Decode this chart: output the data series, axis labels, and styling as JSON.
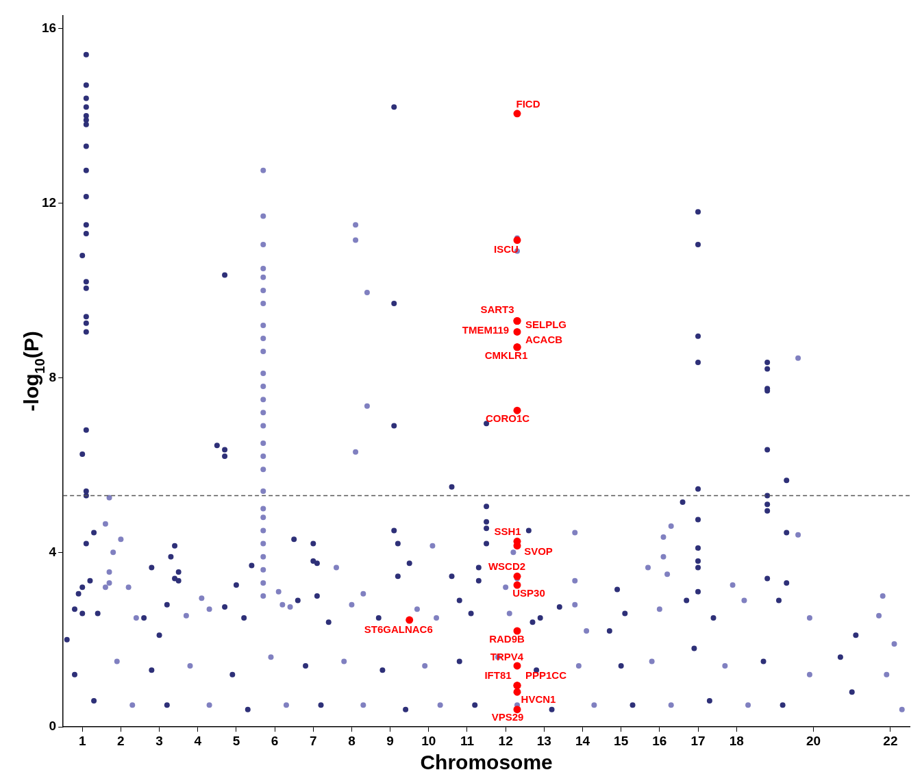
{
  "chart_data": {
    "type": "scatter",
    "xlabel": "Chromosome",
    "ylabel": "-log$_{10}$(P)",
    "xlim": [
      0.5,
      22.5
    ],
    "ylim": [
      0,
      16.3
    ],
    "xticks": [
      1,
      2,
      3,
      4,
      5,
      6,
      7,
      8,
      9,
      10,
      11,
      12,
      13,
      14,
      15,
      16,
      17,
      18,
      20,
      22
    ],
    "yticks": [
      0,
      4,
      8,
      12,
      16
    ],
    "grid": false,
    "legend": false,
    "marker": "circle",
    "ref_lines": [
      {
        "axis": "y",
        "value": 5.3,
        "color": "#555555",
        "line_style": "dashed"
      }
    ],
    "series": [
      {
        "color": "#2e3078",
        "x": [
          1.0,
          1.0,
          1.1,
          1.1,
          1.1,
          1.1,
          1.1,
          1.1,
          1.1,
          1.1,
          1.1,
          1.1,
          1.1,
          1.1,
          1.1,
          1.1,
          1.1,
          1.1,
          1.1,
          1.1,
          1.1,
          1.1,
          1.1,
          1.3,
          1.2,
          1.0,
          0.9,
          0.6,
          0.8,
          1.0,
          1.4,
          0.8,
          1.3,
          2.8,
          3.2,
          3.3,
          3.4,
          3.4,
          3.5,
          3.5,
          2.6,
          3.0,
          2.8,
          3.2,
          4.5,
          4.7,
          4.7,
          4.7,
          5.0,
          5.4,
          4.7,
          5.2,
          4.9,
          5.3,
          6.5,
          7.0,
          7.0,
          7.1,
          7.1,
          6.6,
          7.4,
          6.8,
          7.2,
          9.1,
          9.1,
          9.1,
          9.1,
          9.2,
          9.5,
          9.2,
          8.7,
          8.8,
          9.4,
          10.6,
          11.5,
          11.5,
          11.5,
          11.5,
          11.5,
          11.3,
          11.3,
          10.6,
          10.8,
          11.1,
          10.8,
          11.2,
          12.6,
          12.9,
          13.4,
          12.7,
          12.8,
          13.2,
          14.9,
          15.1,
          14.7,
          15.0,
          15.3,
          17.0,
          17.0,
          17.0,
          17.0,
          17.0,
          16.6,
          17.0,
          17.0,
          17.0,
          17.0,
          17.0,
          16.7,
          17.4,
          16.9,
          17.3,
          18.8,
          18.8,
          18.8,
          18.8,
          18.8,
          18.8,
          18.8,
          18.8,
          19.3,
          19.3,
          19.3,
          18.8,
          19.1,
          18.7,
          19.2,
          21.1,
          20.7,
          21.0
        ],
        "values": [
          6.25,
          10.8,
          15.4,
          14.7,
          14.4,
          14.2,
          14.0,
          13.9,
          13.8,
          13.3,
          12.75,
          12.15,
          11.5,
          11.3,
          10.2,
          10.05,
          9.4,
          9.25,
          9.05,
          6.8,
          5.4,
          5.3,
          4.2,
          4.45,
          3.35,
          3.2,
          3.05,
          2.0,
          2.7,
          2.6,
          2.6,
          1.2,
          0.6,
          3.65,
          2.8,
          3.9,
          3.4,
          4.15,
          3.55,
          3.35,
          2.5,
          2.1,
          1.3,
          0.5,
          6.45,
          6.35,
          6.2,
          10.35,
          3.25,
          3.7,
          2.75,
          2.5,
          1.2,
          0.4,
          4.3,
          4.2,
          3.8,
          3.75,
          3.0,
          2.9,
          2.4,
          1.4,
          0.5,
          14.2,
          9.7,
          6.9,
          4.5,
          4.2,
          3.75,
          3.45,
          2.5,
          1.3,
          0.4,
          5.5,
          6.95,
          5.05,
          4.7,
          4.55,
          4.2,
          3.65,
          3.35,
          3.45,
          2.9,
          2.6,
          1.5,
          0.5,
          4.5,
          2.5,
          2.75,
          2.4,
          1.3,
          0.4,
          3.15,
          2.6,
          2.2,
          1.4,
          0.5,
          11.8,
          11.05,
          8.95,
          8.35,
          5.45,
          5.15,
          4.75,
          4.1,
          3.8,
          3.65,
          3.1,
          2.9,
          2.5,
          1.8,
          0.6,
          8.35,
          8.2,
          7.75,
          7.7,
          6.35,
          5.3,
          5.1,
          4.95,
          5.65,
          4.45,
          3.3,
          3.4,
          2.9,
          1.5,
          0.5,
          2.1,
          1.6,
          0.8
        ]
      },
      {
        "color": "#8080c0",
        "x": [
          1.7,
          1.8,
          2.0,
          1.6,
          1.7,
          1.6,
          1.7,
          2.2,
          2.4,
          1.9,
          2.3,
          4.1,
          3.7,
          4.3,
          3.8,
          4.3,
          5.7,
          5.7,
          5.7,
          5.7,
          5.7,
          5.7,
          5.7,
          5.7,
          5.7,
          5.7,
          5.7,
          5.7,
          5.7,
          5.7,
          5.7,
          5.7,
          5.7,
          5.7,
          5.7,
          5.7,
          5.7,
          5.7,
          5.7,
          5.7,
          5.7,
          5.7,
          5.7,
          6.1,
          6.2,
          6.4,
          5.9,
          6.3,
          8.1,
          8.1,
          8.4,
          8.4,
          8.1,
          7.6,
          8.3,
          8.0,
          7.8,
          8.3,
          10.1,
          9.7,
          10.2,
          9.9,
          10.3,
          12.3,
          12.3,
          12.2,
          12.3,
          12.0,
          12.1,
          11.8,
          12.3,
          13.8,
          13.8,
          13.8,
          14.1,
          13.9,
          14.3,
          16.3,
          16.1,
          16.1,
          15.7,
          16.2,
          16.0,
          15.8,
          16.3,
          17.9,
          18.2,
          17.7,
          18.3,
          19.6,
          19.6,
          19.9,
          19.9,
          21.8,
          21.7,
          22.1,
          21.9,
          22.3
        ],
        "values": [
          5.25,
          4.0,
          4.3,
          4.65,
          3.55,
          3.2,
          3.3,
          3.2,
          2.5,
          1.5,
          0.5,
          2.95,
          2.55,
          2.7,
          1.4,
          0.5,
          12.75,
          11.7,
          11.05,
          10.5,
          10.3,
          10.0,
          9.7,
          9.2,
          8.9,
          8.6,
          8.1,
          7.8,
          7.5,
          7.2,
          6.9,
          6.5,
          6.2,
          5.9,
          5.4,
          5.0,
          4.8,
          4.5,
          4.2,
          3.9,
          3.6,
          3.3,
          3.0,
          3.1,
          2.8,
          2.75,
          1.6,
          0.5,
          11.5,
          11.15,
          9.95,
          7.35,
          6.3,
          3.65,
          3.05,
          2.8,
          1.5,
          0.5,
          4.15,
          2.7,
          2.5,
          1.4,
          0.5,
          11.2,
          10.9,
          4.0,
          3.4,
          3.2,
          2.6,
          1.6,
          0.5,
          4.45,
          3.35,
          2.8,
          2.2,
          1.4,
          0.5,
          4.6,
          4.35,
          3.9,
          3.65,
          3.5,
          2.7,
          1.5,
          0.5,
          3.25,
          2.9,
          1.4,
          0.5,
          8.45,
          4.4,
          2.5,
          1.2,
          3.0,
          2.55,
          1.9,
          1.2,
          0.4
        ]
      },
      {
        "color": "#ff0000",
        "x": [
          12.3,
          12.3,
          12.3,
          12.3,
          12.3,
          12.3,
          12.3,
          12.3,
          12.3,
          12.3,
          12.3,
          12.3,
          9.5,
          12.3,
          12.3,
          12.3,
          12.3,
          12.3,
          12.3
        ],
        "values": [
          14.05,
          11.15,
          9.3,
          9.3,
          9.05,
          8.7,
          8.7,
          7.25,
          4.25,
          4.15,
          3.45,
          3.25,
          2.45,
          2.2,
          1.4,
          0.95,
          0.95,
          0.8,
          0.4
        ]
      }
    ],
    "annotations": [
      "FICD",
      "ISCU",
      "SART3",
      "SELPLG",
      "TMEM119",
      "ACACB",
      "CMKLR1",
      "CORO1C",
      "SSH1",
      "SVOP",
      "WSCD2",
      "USP30",
      "ST6GALNAC6",
      "RAD9B",
      "TRPV4",
      "IFT81",
      "PPP1CC",
      "HVCN1",
      "VPS29"
    ]
  }
}
